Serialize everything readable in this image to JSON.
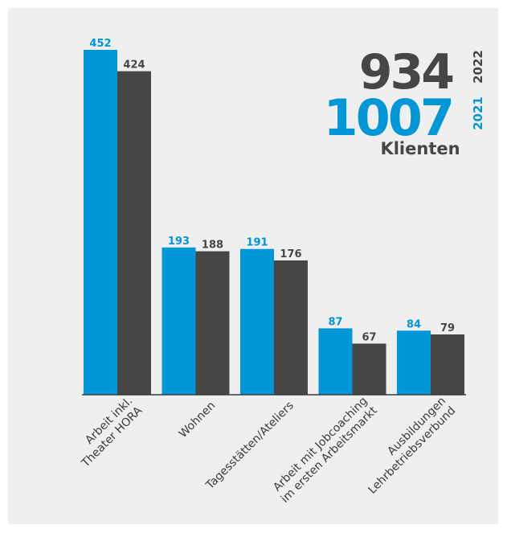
{
  "colors": {
    "series_2021": "#0097d9",
    "series_2022": "#474644",
    "axis": "#3a3a3a"
  },
  "summary": {
    "total_2022": "934",
    "year_2022": "2022",
    "total_2021": "1007",
    "year_2021": "2021",
    "label": "Klienten"
  },
  "chart_data": {
    "type": "bar",
    "categories": [
      [
        "Arbeit inkl.",
        "Theater HORA"
      ],
      [
        "Wohnen"
      ],
      [
        "Tagesstätten/Ateliers"
      ],
      [
        "Arbeit mit Jobcoaching",
        "im ersten Arbeitsmarkt"
      ],
      [
        "Ausbildungen",
        "Lehrbetriebsverbund"
      ]
    ],
    "series": [
      {
        "values": [
          452,
          193,
          191,
          87,
          84
        ]
      },
      {
        "values": [
          424,
          188,
          176,
          67,
          79
        ]
      }
    ],
    "ylim": [
      0,
      452
    ],
    "grid": false,
    "legend": "none"
  }
}
